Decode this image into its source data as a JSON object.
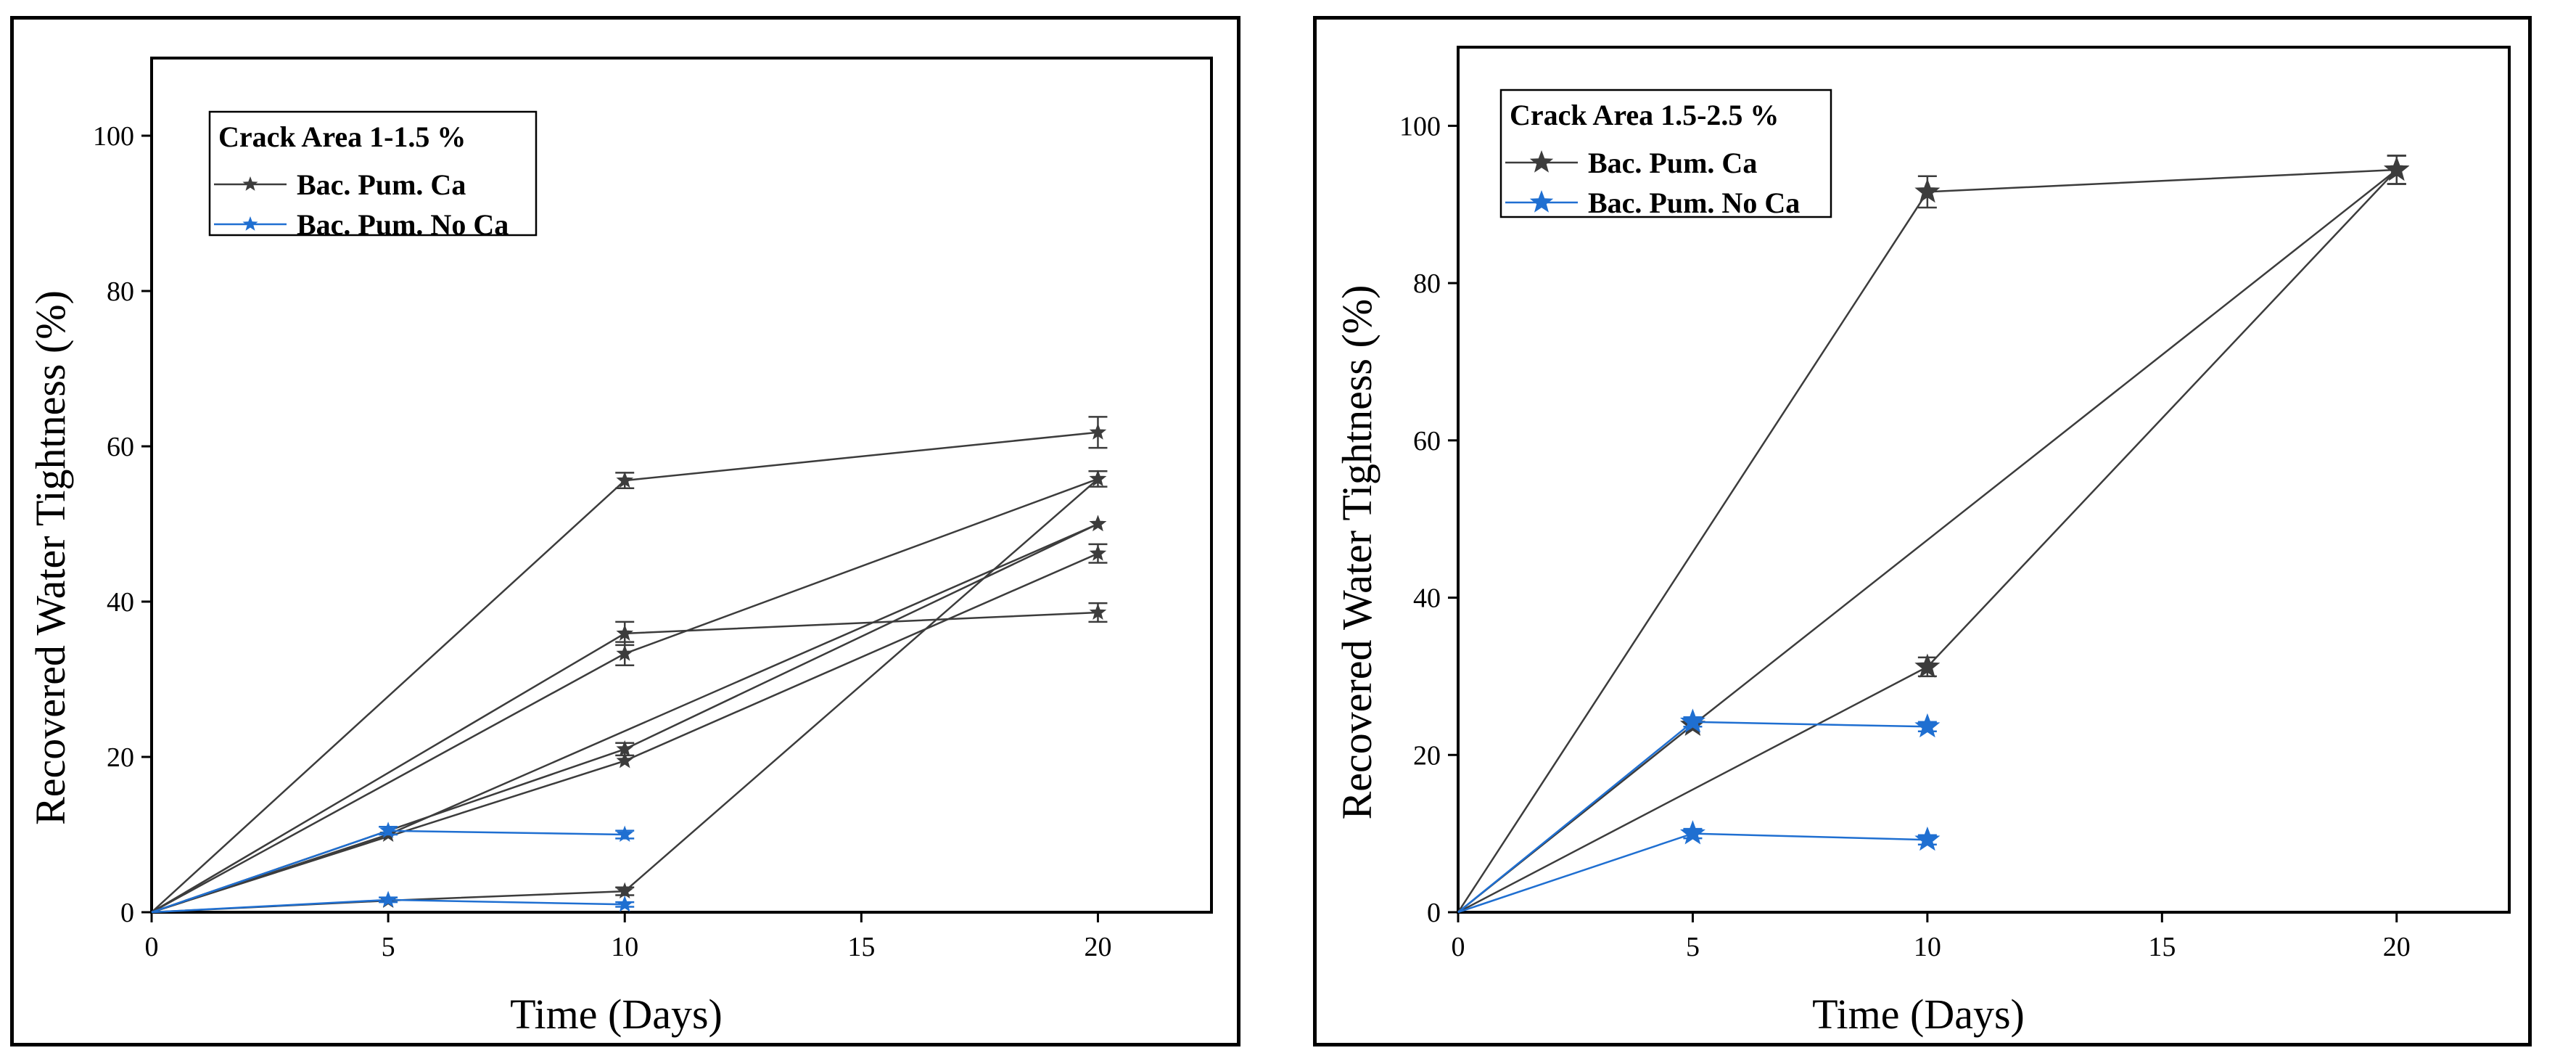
{
  "colors": {
    "ca": "#3c3c3c",
    "no_ca": "#1f6fd1",
    "axis": "#000000"
  },
  "chart_data": [
    {
      "type": "line",
      "title": "",
      "xlabel": "Time (Days)",
      "ylabel": "Recovered Water Tightness (%)",
      "xlim": [
        0,
        22.4
      ],
      "ylim": [
        0,
        110
      ],
      "x_ticks": [
        0,
        5,
        10,
        15,
        20
      ],
      "y_ticks": [
        0,
        20,
        40,
        60,
        80,
        100
      ],
      "x_tick_labels": [
        "0",
        "5",
        "10",
        "15",
        "20"
      ],
      "y_tick_labels": [
        "0",
        "20",
        "40",
        "60",
        "80",
        "100"
      ],
      "legend": {
        "title": "Crack Area 1-1.5 %",
        "entries": [
          "Bac. Pum. Ca",
          "Bac. Pum. No Ca"
        ],
        "placement": "top-left"
      },
      "series": [
        {
          "name": "Bac. Pum. Ca",
          "group": "ca",
          "points": [
            [
              0,
              0
            ],
            [
              10,
              55.6
            ],
            [
              20,
              61.8
            ]
          ],
          "errors": [
            0,
            1.0,
            2.0
          ]
        },
        {
          "name": "Bac. Pum. Ca",
          "group": "ca",
          "points": [
            [
              0,
              0
            ],
            [
              10,
              35.9
            ],
            [
              20,
              38.6
            ]
          ],
          "errors": [
            0,
            1.5,
            1.2
          ]
        },
        {
          "name": "Bac. Pum. Ca",
          "group": "ca",
          "points": [
            [
              0,
              0
            ],
            [
              10,
              33.3
            ],
            [
              20,
              55.8
            ]
          ],
          "errors": [
            0,
            1.5,
            1.0
          ]
        },
        {
          "name": "Bac. Pum. Ca",
          "group": "ca",
          "points": [
            [
              0,
              0
            ],
            [
              10,
              21.0
            ],
            [
              20,
              50.0
            ]
          ],
          "errors": [
            0,
            0.8,
            0
          ]
        },
        {
          "name": "Bac. Pum. Ca",
          "group": "ca",
          "points": [
            [
              0,
              0
            ],
            [
              10,
              19.5
            ],
            [
              20,
              46.2
            ]
          ],
          "errors": [
            0,
            0,
            1.2
          ]
        },
        {
          "name": "Bac. Pum. Ca",
          "group": "ca",
          "points": [
            [
              0,
              0
            ],
            [
              5,
              10.0
            ],
            [
              20,
              50.0
            ]
          ],
          "errors": [
            0,
            0,
            0
          ]
        },
        {
          "name": "Bac. Pum. Ca",
          "group": "ca",
          "points": [
            [
              0,
              0
            ],
            [
              5,
              1.5
            ],
            [
              10,
              2.7
            ],
            [
              20,
              55.8
            ]
          ],
          "errors": [
            0,
            0,
            0.5,
            0
          ]
        },
        {
          "name": "Bac. Pum. No Ca",
          "group": "no_ca",
          "points": [
            [
              0,
              0
            ],
            [
              5,
              10.5
            ],
            [
              10,
              10.0
            ]
          ],
          "errors": [
            0,
            0.5,
            0.5
          ]
        },
        {
          "name": "Bac. Pum. No Ca",
          "group": "no_ca",
          "points": [
            [
              0,
              0
            ],
            [
              5,
              1.6
            ],
            [
              10,
              1.0
            ]
          ],
          "errors": [
            0,
            0.3,
            0.3
          ]
        }
      ]
    },
    {
      "type": "line",
      "title": "",
      "xlabel": "Time (Days)",
      "ylabel": "Recovered Water Tightness (%)",
      "xlim": [
        0,
        22.4
      ],
      "ylim": [
        0,
        110
      ],
      "x_ticks": [
        0,
        5,
        10,
        15,
        20
      ],
      "y_ticks": [
        0,
        20,
        40,
        60,
        80,
        100
      ],
      "x_tick_labels": [
        "0",
        "5",
        "10",
        "15",
        "20"
      ],
      "y_tick_labels": [
        "0",
        "20",
        "40",
        "60",
        "80",
        "100"
      ],
      "legend": {
        "title": "Crack Area 1.5-2.5 %",
        "entries": [
          "Bac. Pum. Ca",
          "Bac. Pum. No Ca"
        ],
        "placement": "top-left"
      },
      "series": [
        {
          "name": "Bac. Pum. Ca",
          "group": "ca",
          "points": [
            [
              0,
              0
            ],
            [
              10,
              91.6
            ],
            [
              20,
              94.4
            ]
          ],
          "errors": [
            0,
            2.0,
            1.8
          ]
        },
        {
          "name": "Bac. Pum. Ca",
          "group": "ca",
          "points": [
            [
              0,
              0
            ],
            [
              10,
              31.2
            ],
            [
              20,
              94.4
            ]
          ],
          "errors": [
            0,
            1.2,
            1.8
          ]
        },
        {
          "name": "Bac. Pum. Ca",
          "group": "ca",
          "points": [
            [
              0,
              0
            ],
            [
              5,
              23.8
            ],
            [
              20,
              94.4
            ]
          ],
          "errors": [
            0,
            0,
            1.8
          ]
        },
        {
          "name": "Bac. Pum. No Ca",
          "group": "no_ca",
          "points": [
            [
              0,
              0
            ],
            [
              5,
              24.2
            ],
            [
              10,
              23.6
            ]
          ],
          "errors": [
            0,
            0.6,
            0.6
          ]
        },
        {
          "name": "Bac. Pum. No Ca",
          "group": "no_ca",
          "points": [
            [
              0,
              0
            ],
            [
              5,
              10.0
            ],
            [
              10,
              9.2
            ]
          ],
          "errors": [
            0,
            0.6,
            0.6
          ]
        }
      ]
    }
  ]
}
